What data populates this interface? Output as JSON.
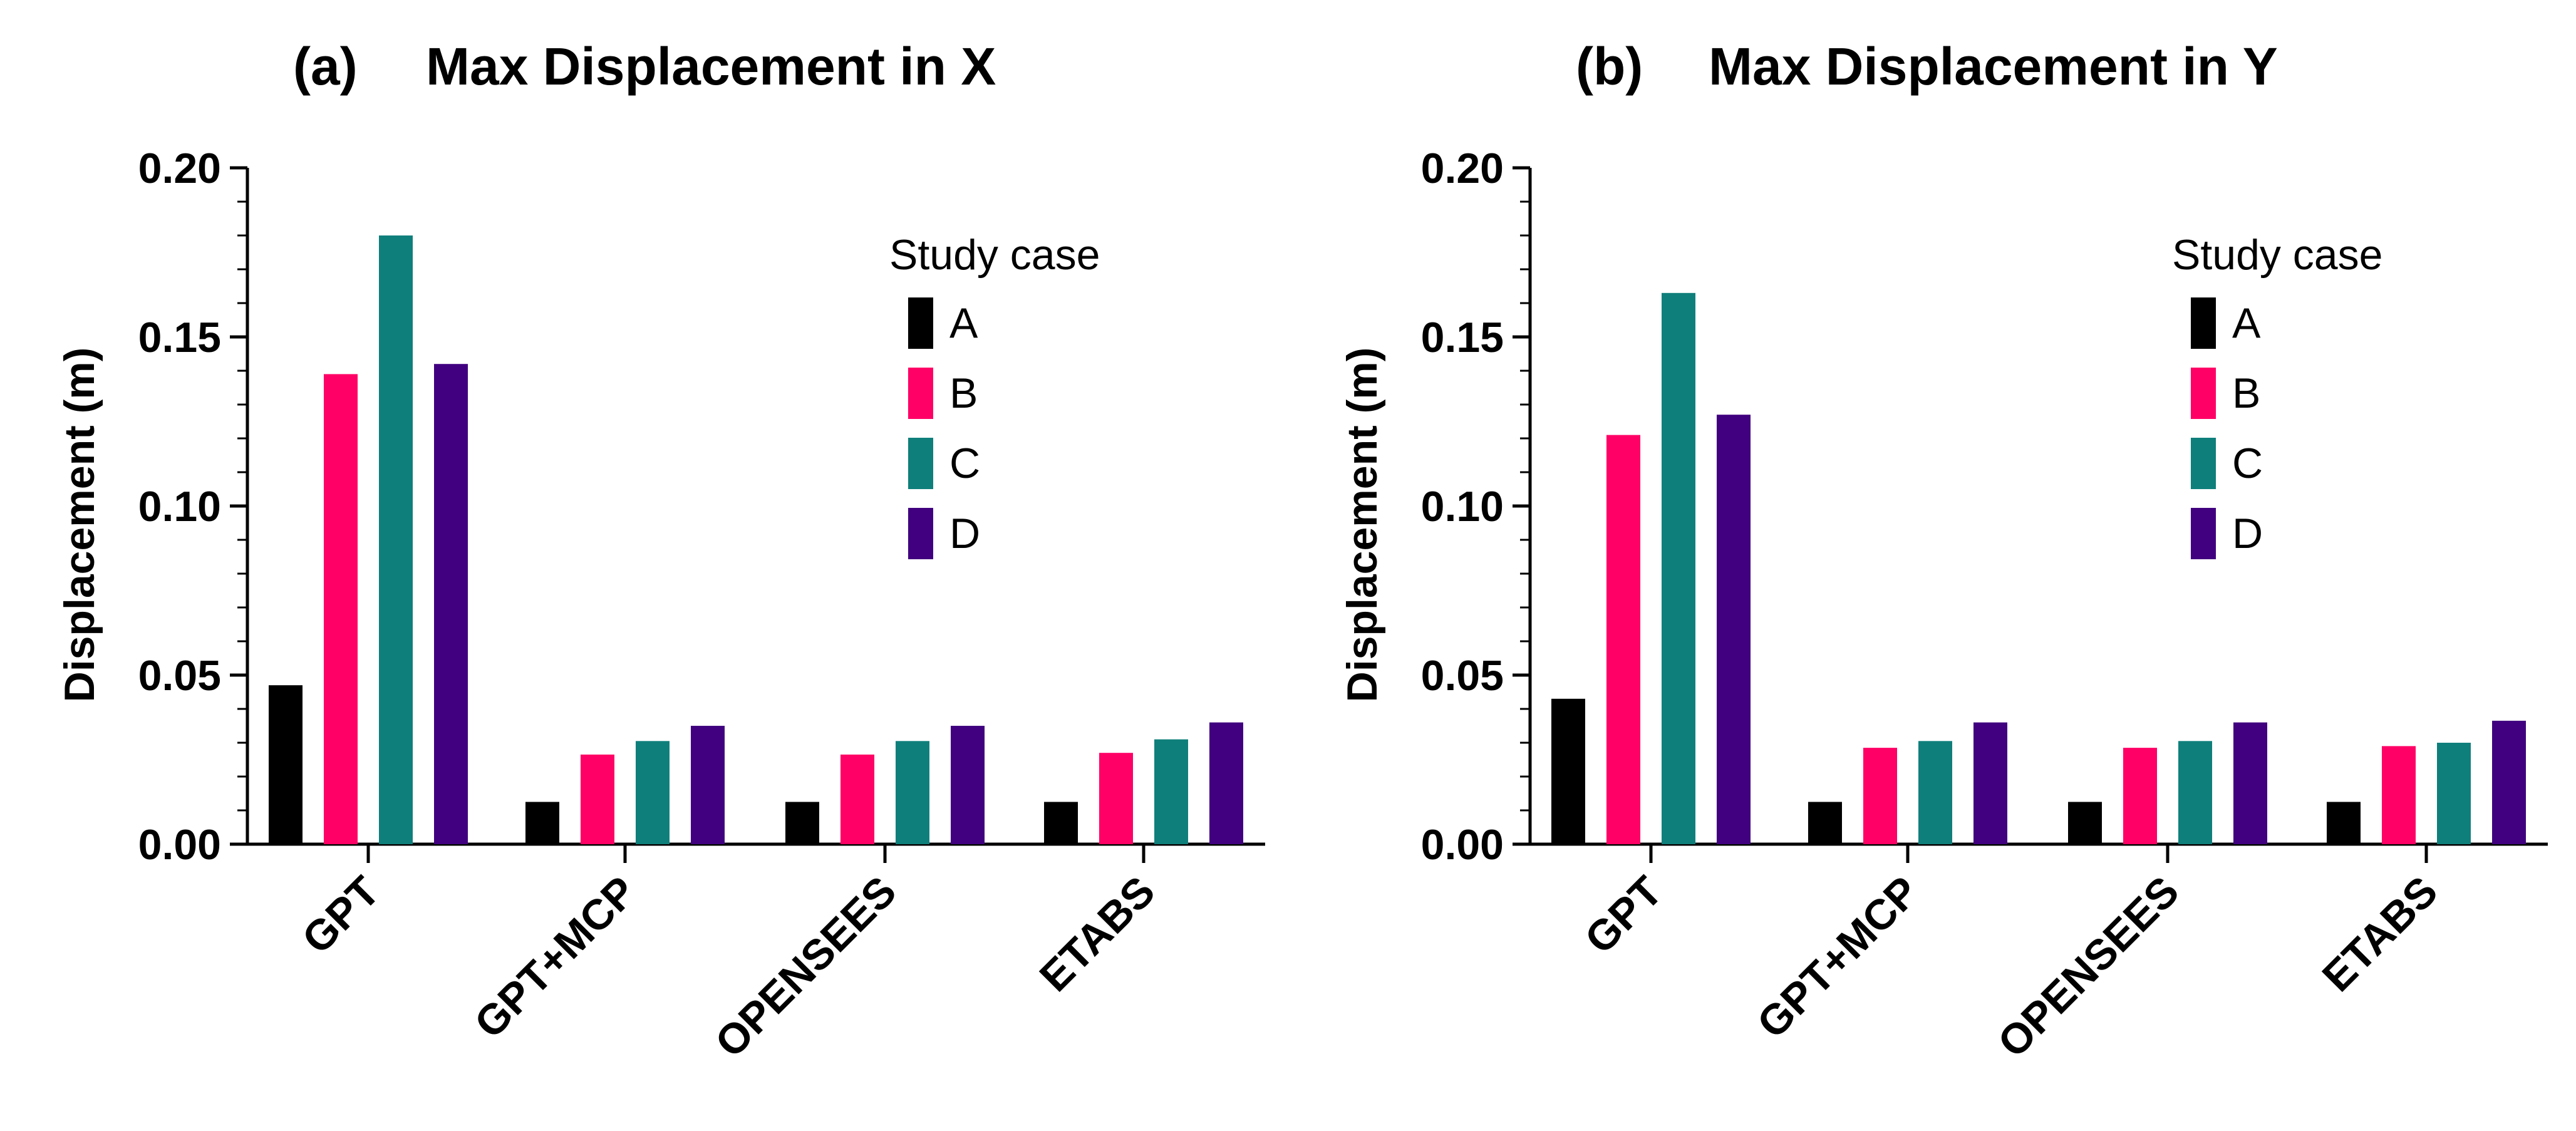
{
  "chart_data": [
    {
      "type": "bar",
      "panel_label": "(a)",
      "title": "Max Displacement in X",
      "xlabel": "",
      "ylabel": "Displacement (m)",
      "ylim": [
        0,
        0.2
      ],
      "yticks": [
        "0.00",
        "0.05",
        "0.10",
        "0.15",
        "0.20"
      ],
      "categories": [
        "GPT",
        "GPT+MCP",
        "OPENSEES",
        "ETABS"
      ],
      "legend_title": "Study case",
      "legend_position": "top-right",
      "series": [
        {
          "name": "A",
          "color": "#000000",
          "values": [
            0.047,
            0.0125,
            0.0125,
            0.0125
          ]
        },
        {
          "name": "B",
          "color": "#ff0066",
          "values": [
            0.139,
            0.0265,
            0.0265,
            0.027
          ]
        },
        {
          "name": "C",
          "color": "#0f7f7b",
          "values": [
            0.18,
            0.0305,
            0.0305,
            0.031
          ]
        },
        {
          "name": "D",
          "color": "#40007f",
          "values": [
            0.142,
            0.035,
            0.035,
            0.036
          ]
        }
      ]
    },
    {
      "type": "bar",
      "panel_label": "(b)",
      "title": "Max Displacement in Y",
      "xlabel": "",
      "ylabel": "Displacement (m)",
      "ylim": [
        0,
        0.2
      ],
      "yticks": [
        "0.00",
        "0.05",
        "0.10",
        "0.15",
        "0.20"
      ],
      "categories": [
        "GPT",
        "GPT+MCP",
        "OPENSEES",
        "ETABS"
      ],
      "legend_title": "Study case",
      "legend_position": "top-right",
      "series": [
        {
          "name": "A",
          "color": "#000000",
          "values": [
            0.043,
            0.0125,
            0.0125,
            0.0125
          ]
        },
        {
          "name": "B",
          "color": "#ff0066",
          "values": [
            0.121,
            0.0285,
            0.0285,
            0.029
          ]
        },
        {
          "name": "C",
          "color": "#0f7f7b",
          "values": [
            0.163,
            0.0305,
            0.0305,
            0.03
          ]
        },
        {
          "name": "D",
          "color": "#40007f",
          "values": [
            0.127,
            0.036,
            0.036,
            0.0365
          ]
        }
      ]
    }
  ]
}
